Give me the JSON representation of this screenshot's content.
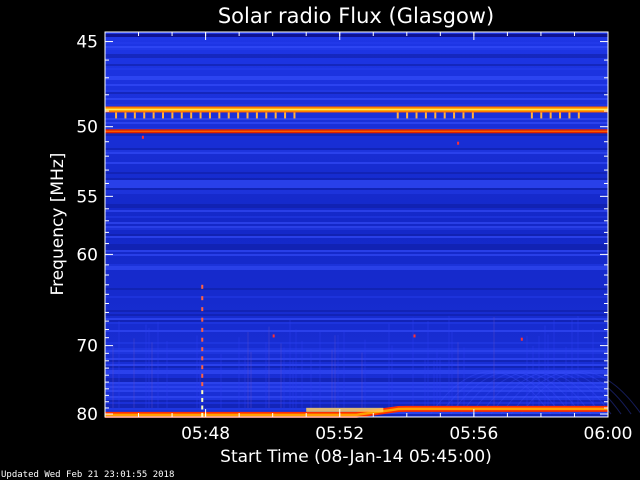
{
  "chart_data": {
    "type": "heatmap",
    "title": "Solar radio Flux (Glasgow)",
    "xlabel": "Start Time (08-Jan-14 05:45:00)",
    "ylabel": "Frequency [MHz]",
    "x_ticks": [
      "05:48",
      "05:52",
      "05:56",
      "06:00"
    ],
    "x_tick_values_min": [
      3,
      7,
      11,
      15
    ],
    "y_ticks": [
      45,
      50,
      55,
      60,
      70,
      80
    ],
    "x_range_min": [
      0,
      15
    ],
    "y_range_mhz": [
      44.5,
      80.5
    ],
    "y_scale": "reciprocal",
    "background_color": "#1428c8",
    "colormap": [
      "#0a0a5a",
      "#1428c8",
      "#2a3cff",
      "#c83c3c",
      "#ff2000",
      "#ff9000",
      "#ffff80"
    ],
    "features": [
      {
        "name": "narrowband emission",
        "freq_mhz": 48.9,
        "intensity": "high"
      },
      {
        "name": "narrowband emission",
        "freq_mhz": 50.3,
        "intensity": "high"
      },
      {
        "name": "low-frequency edge band",
        "freq_mhz": 79.8,
        "time_range_min": [
          0,
          15
        ],
        "intensity": "high"
      },
      {
        "name": "interference spike",
        "time_min": 2.9,
        "freq_range_mhz": [
          63,
          80
        ]
      }
    ]
  },
  "footer": {
    "updated": "Updated Wed Feb 21 23:01:55 2018"
  }
}
